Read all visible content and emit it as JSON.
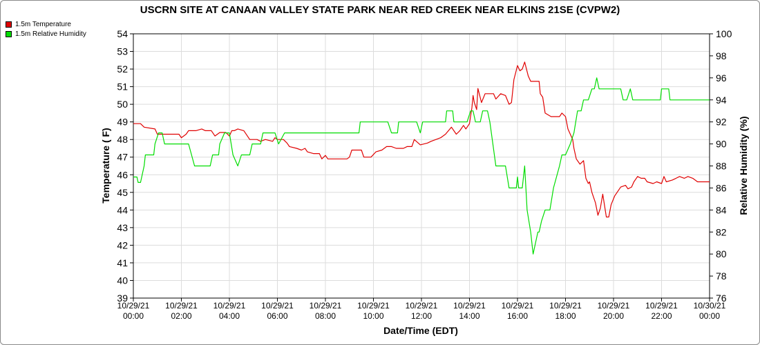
{
  "chart_data": {
    "type": "line",
    "title": "USCRN SITE AT CANAAN VALLEY STATE PARK NEAR RED CREEK NEAR ELKINS 21SE (CVPW2)",
    "xlabel": "Date/Time (EDT)",
    "ylabel_left": "Temperature ( F)",
    "ylabel_right": "Relative Humidity (%)",
    "xlim": [
      0,
      24
    ],
    "ylim_left": [
      39,
      54
    ],
    "ylim_right": [
      76,
      100
    ],
    "left_ticks": [
      39,
      40,
      41,
      42,
      43,
      44,
      45,
      46,
      47,
      48,
      49,
      50,
      51,
      52,
      53,
      54
    ],
    "right_ticks": [
      76,
      78,
      80,
      82,
      84,
      86,
      88,
      90,
      92,
      94,
      96,
      98,
      100
    ],
    "x_ticks": [
      {
        "x": 0,
        "date": "10/29/21",
        "time": "00:00"
      },
      {
        "x": 2,
        "date": "10/29/21",
        "time": "02:00"
      },
      {
        "x": 4,
        "date": "10/29/21",
        "time": "04:00"
      },
      {
        "x": 6,
        "date": "10/29/21",
        "time": "06:00"
      },
      {
        "x": 8,
        "date": "10/29/21",
        "time": "08:00"
      },
      {
        "x": 10,
        "date": "10/29/21",
        "time": "10:00"
      },
      {
        "x": 12,
        "date": "10/29/21",
        "time": "12:00"
      },
      {
        "x": 14,
        "date": "10/29/21",
        "time": "14:00"
      },
      {
        "x": 16,
        "date": "10/29/21",
        "time": "16:00"
      },
      {
        "x": 18,
        "date": "10/29/21",
        "time": "18:00"
      },
      {
        "x": 20,
        "date": "10/29/21",
        "time": "20:00"
      },
      {
        "x": 22,
        "date": "10/29/21",
        "time": "22:00"
      },
      {
        "x": 24,
        "date": "10/30/21",
        "time": "00:00"
      }
    ],
    "grid": true,
    "legend_position": "top-left",
    "series": [
      {
        "name": "1.5m Temperature",
        "axis": "left",
        "color": "#e00000",
        "points": [
          [
            0,
            48.9
          ],
          [
            0.3,
            48.9
          ],
          [
            0.45,
            48.7
          ],
          [
            0.9,
            48.6
          ],
          [
            1.0,
            48.3
          ],
          [
            1.35,
            48.3
          ],
          [
            1.6,
            48.3
          ],
          [
            1.9,
            48.3
          ],
          [
            2.0,
            48.1
          ],
          [
            2.2,
            48.3
          ],
          [
            2.3,
            48.5
          ],
          [
            2.6,
            48.5
          ],
          [
            2.85,
            48.6
          ],
          [
            3.0,
            48.5
          ],
          [
            3.25,
            48.5
          ],
          [
            3.4,
            48.2
          ],
          [
            3.6,
            48.4
          ],
          [
            3.85,
            48.4
          ],
          [
            4.0,
            48.2
          ],
          [
            4.1,
            48.5
          ],
          [
            4.2,
            48.5
          ],
          [
            4.35,
            48.6
          ],
          [
            4.6,
            48.5
          ],
          [
            4.85,
            48.0
          ],
          [
            5.15,
            48.0
          ],
          [
            5.3,
            47.9
          ],
          [
            5.5,
            48.0
          ],
          [
            5.8,
            47.9
          ],
          [
            5.9,
            48.1
          ],
          [
            6.0,
            48.0
          ],
          [
            6.25,
            48.0
          ],
          [
            6.4,
            47.8
          ],
          [
            6.5,
            47.6
          ],
          [
            6.8,
            47.5
          ],
          [
            7.0,
            47.4
          ],
          [
            7.15,
            47.5
          ],
          [
            7.25,
            47.3
          ],
          [
            7.5,
            47.2
          ],
          [
            7.75,
            47.2
          ],
          [
            7.85,
            46.9
          ],
          [
            8.0,
            47.1
          ],
          [
            8.1,
            46.9
          ],
          [
            8.4,
            46.9
          ],
          [
            8.7,
            46.9
          ],
          [
            8.9,
            46.9
          ],
          [
            9.0,
            47.0
          ],
          [
            9.1,
            47.4
          ],
          [
            9.5,
            47.4
          ],
          [
            9.6,
            47.0
          ],
          [
            9.9,
            47.0
          ],
          [
            10.1,
            47.3
          ],
          [
            10.35,
            47.4
          ],
          [
            10.55,
            47.6
          ],
          [
            10.75,
            47.6
          ],
          [
            10.95,
            47.5
          ],
          [
            11.25,
            47.5
          ],
          [
            11.4,
            47.6
          ],
          [
            11.6,
            47.6
          ],
          [
            11.7,
            48.0
          ],
          [
            11.95,
            47.7
          ],
          [
            12.25,
            47.8
          ],
          [
            12.4,
            47.9
          ],
          [
            12.6,
            48.0
          ],
          [
            12.8,
            48.1
          ],
          [
            13.0,
            48.3
          ],
          [
            13.25,
            48.7
          ],
          [
            13.45,
            48.3
          ],
          [
            13.6,
            48.5
          ],
          [
            13.75,
            48.8
          ],
          [
            13.85,
            48.6
          ],
          [
            14.0,
            48.9
          ],
          [
            14.1,
            49.8
          ],
          [
            14.15,
            50.5
          ],
          [
            14.2,
            50.1
          ],
          [
            14.3,
            49.7
          ],
          [
            14.35,
            50.9
          ],
          [
            14.5,
            50.1
          ],
          [
            14.65,
            50.6
          ],
          [
            15.0,
            50.6
          ],
          [
            15.1,
            50.3
          ],
          [
            15.3,
            50.6
          ],
          [
            15.5,
            50.5
          ],
          [
            15.65,
            50.0
          ],
          [
            15.75,
            50.1
          ],
          [
            15.85,
            51.4
          ],
          [
            16.0,
            52.2
          ],
          [
            16.1,
            51.9
          ],
          [
            16.2,
            52.0
          ],
          [
            16.3,
            52.4
          ],
          [
            16.45,
            51.6
          ],
          [
            16.55,
            51.3
          ],
          [
            16.9,
            51.3
          ],
          [
            16.95,
            50.6
          ],
          [
            17.05,
            50.4
          ],
          [
            17.15,
            49.5
          ],
          [
            17.4,
            49.3
          ],
          [
            17.75,
            49.3
          ],
          [
            17.85,
            49.5
          ],
          [
            18.0,
            49.3
          ],
          [
            18.1,
            48.6
          ],
          [
            18.2,
            48.3
          ],
          [
            18.3,
            48.0
          ],
          [
            18.35,
            47.5
          ],
          [
            18.45,
            46.9
          ],
          [
            18.6,
            46.6
          ],
          [
            18.75,
            46.8
          ],
          [
            18.85,
            45.8
          ],
          [
            18.95,
            45.5
          ],
          [
            19.0,
            45.6
          ],
          [
            19.1,
            45.0
          ],
          [
            19.25,
            44.4
          ],
          [
            19.35,
            43.7
          ],
          [
            19.45,
            44.1
          ],
          [
            19.55,
            44.9
          ],
          [
            19.7,
            43.6
          ],
          [
            19.8,
            43.6
          ],
          [
            19.9,
            44.3
          ],
          [
            20.05,
            44.8
          ],
          [
            20.3,
            45.3
          ],
          [
            20.5,
            45.4
          ],
          [
            20.6,
            45.2
          ],
          [
            20.75,
            45.3
          ],
          [
            20.85,
            45.6
          ],
          [
            21.0,
            45.9
          ],
          [
            21.15,
            45.8
          ],
          [
            21.3,
            45.8
          ],
          [
            21.4,
            45.6
          ],
          [
            21.65,
            45.5
          ],
          [
            21.8,
            45.6
          ],
          [
            22.0,
            45.5
          ],
          [
            22.1,
            45.9
          ],
          [
            22.2,
            45.6
          ],
          [
            22.45,
            45.7
          ],
          [
            22.6,
            45.8
          ],
          [
            22.75,
            45.9
          ],
          [
            22.95,
            45.8
          ],
          [
            23.1,
            45.9
          ],
          [
            23.3,
            45.8
          ],
          [
            23.5,
            45.6
          ],
          [
            24,
            45.6
          ]
        ]
      },
      {
        "name": "1.5m Relative Humidity",
        "axis": "right",
        "color": "#00dd00",
        "points": [
          [
            0,
            87
          ],
          [
            0.15,
            87
          ],
          [
            0.2,
            86.5
          ],
          [
            0.3,
            86.5
          ],
          [
            0.45,
            88
          ],
          [
            0.5,
            89
          ],
          [
            0.85,
            89
          ],
          [
            0.9,
            90
          ],
          [
            1.05,
            91
          ],
          [
            1.2,
            91
          ],
          [
            1.3,
            90
          ],
          [
            2.3,
            90
          ],
          [
            2.55,
            88
          ],
          [
            3.0,
            88
          ],
          [
            3.2,
            88
          ],
          [
            3.3,
            89
          ],
          [
            3.55,
            89
          ],
          [
            3.6,
            90
          ],
          [
            3.8,
            91
          ],
          [
            4.0,
            91
          ],
          [
            4.15,
            89
          ],
          [
            4.35,
            88
          ],
          [
            4.5,
            89
          ],
          [
            4.85,
            89
          ],
          [
            4.95,
            90
          ],
          [
            5.3,
            90
          ],
          [
            5.4,
            91
          ],
          [
            5.9,
            91
          ],
          [
            6.05,
            90
          ],
          [
            6.3,
            91
          ],
          [
            9.4,
            91
          ],
          [
            9.45,
            92
          ],
          [
            10.6,
            92
          ],
          [
            10.75,
            91
          ],
          [
            11.0,
            91
          ],
          [
            11.05,
            92
          ],
          [
            11.8,
            92
          ],
          [
            11.95,
            91
          ],
          [
            12.05,
            92
          ],
          [
            13.0,
            92
          ],
          [
            13.05,
            93
          ],
          [
            13.3,
            93
          ],
          [
            13.35,
            92
          ],
          [
            13.9,
            92
          ],
          [
            14.05,
            93
          ],
          [
            14.15,
            93
          ],
          [
            14.25,
            92
          ],
          [
            14.45,
            92
          ],
          [
            14.55,
            93
          ],
          [
            14.75,
            93
          ],
          [
            14.85,
            92
          ],
          [
            15.1,
            88
          ],
          [
            15.5,
            88
          ],
          [
            15.65,
            86
          ],
          [
            15.95,
            86
          ],
          [
            16.0,
            87
          ],
          [
            16.05,
            86
          ],
          [
            16.2,
            86
          ],
          [
            16.3,
            88
          ],
          [
            16.4,
            84
          ],
          [
            16.55,
            82
          ],
          [
            16.65,
            80
          ],
          [
            16.85,
            82
          ],
          [
            16.9,
            82
          ],
          [
            17.0,
            83
          ],
          [
            17.15,
            84
          ],
          [
            17.35,
            84
          ],
          [
            17.5,
            86
          ],
          [
            17.75,
            88
          ],
          [
            17.85,
            89
          ],
          [
            18.0,
            89
          ],
          [
            18.2,
            90
          ],
          [
            18.35,
            91
          ],
          [
            18.5,
            93
          ],
          [
            18.65,
            93
          ],
          [
            18.75,
            94
          ],
          [
            18.95,
            94
          ],
          [
            19.1,
            95
          ],
          [
            19.2,
            95
          ],
          [
            19.3,
            96
          ],
          [
            19.4,
            95
          ],
          [
            20.3,
            95
          ],
          [
            20.4,
            94
          ],
          [
            20.55,
            94
          ],
          [
            20.7,
            95
          ],
          [
            20.8,
            94
          ],
          [
            21.95,
            94
          ],
          [
            22.0,
            95
          ],
          [
            22.3,
            95
          ],
          [
            22.35,
            94
          ],
          [
            24,
            94
          ]
        ]
      }
    ]
  }
}
